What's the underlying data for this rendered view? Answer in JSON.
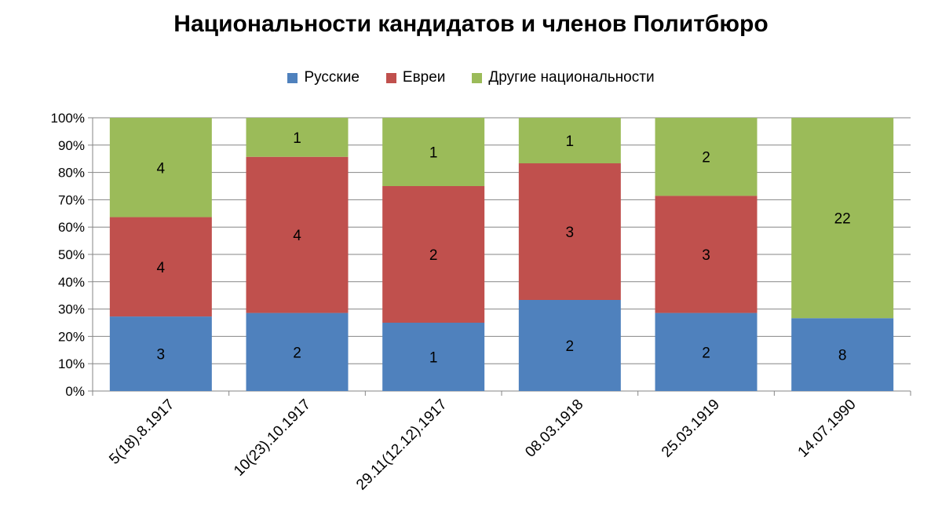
{
  "chart_data": {
    "type": "bar",
    "stacked": "percent",
    "title": "Национальности кандидатов и членов Политбюро",
    "categories": [
      "5(18).8.1917",
      "10(23).10.1917",
      "29.11(12.12).1917",
      "08.03.1918",
      "25.03.1919",
      "14.07.1990"
    ],
    "series": [
      {
        "name": "Русские",
        "values": [
          3,
          2,
          1,
          2,
          2,
          8
        ],
        "color": "#4F81BD"
      },
      {
        "name": "Евреи",
        "values": [
          4,
          4,
          2,
          3,
          3,
          0
        ],
        "color": "#C0504D"
      },
      {
        "name": "Другие национальности",
        "values": [
          4,
          1,
          1,
          1,
          2,
          22
        ],
        "color": "#9BBB59"
      }
    ],
    "y_ticks": [
      "0%",
      "10%",
      "20%",
      "30%",
      "40%",
      "50%",
      "60%",
      "70%",
      "80%",
      "90%",
      "100%"
    ],
    "ylim": [
      0,
      100
    ],
    "grid": true,
    "legend_position": "top"
  }
}
